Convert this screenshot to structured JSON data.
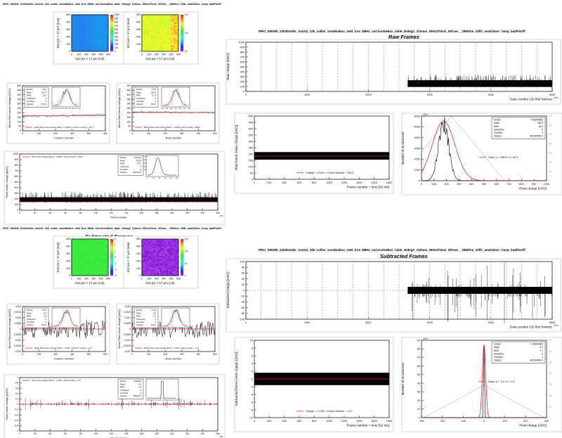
{
  "headers": {
    "left_raw": "IPHC_080306_22h00m00s_Am241_22k_collim_1mmRadius_m5d_trv4_5MHz_noConvNoBox_table_20degC_010mm_050x370mm_097aec__1850frm_10ffc_ana015snr_rmnp_badPixOff",
    "right_raw": "IPHC_080306_22h00m00s_Am241_22k_collim_1mmRadius_m5d_trv4_5MHz_noConvNoBox_table_20degC_010mm_050x370mm_097aec__1850frm_10ffc_ana015snr_rmnp_badPixOff",
    "left_sub": "IPHC_080306_22h00m00s_Am241_22k_collim_1mmRadius_m5d_trv4_5MHz_noConvNoBox_table_20degC_010mm_050x370mm_097aec__1850frm_10ffc_ana015snr_rmnp_badPixOff",
    "right_sub": "IPHC_080306_22h00m00s_Am241_22k_collim_1mmRadius_m5d_trv4_5MHz_noConvNoBox_table_20degC_010mm_050x370mm_097aec__1850frm_10ffc_ana015snr_rmnp_badPixOff",
    "raw_title": "Raw Frames",
    "sub_title": "Subtracted Frames"
  },
  "colors": {
    "data": "#000000",
    "fit": "#e8262a",
    "dash": "#777777",
    "grid": "#aaaaaa",
    "axis": "#000000"
  },
  "chart_data": [
    {
      "id": "raw_map_mean",
      "type": "heatmap",
      "title": "",
      "xlabel": "512 pix × 17 µm  (col)",
      "ylabel": "512 pix × 17 µm  (row)",
      "x_ticks": [
        "0",
        "100",
        "200",
        "300",
        "400",
        "500"
      ],
      "y_ticks": [
        "0",
        "100",
        "200",
        "300",
        "400",
        "500"
      ],
      "z_ticks": [
        "0",
        "100",
        "200",
        "300",
        "400",
        "500",
        "600",
        "700",
        "800",
        "900",
        "1000"
      ],
      "palette": "rainbow-blue"
    },
    {
      "id": "raw_map_rms",
      "type": "heatmap",
      "title": "",
      "xlabel": "512 pix × 17 µm  (col)",
      "ylabel": "512 pix × 17 µm  (row)",
      "x_ticks": [
        "0",
        "100",
        "200",
        "300",
        "400",
        "500"
      ],
      "y_ticks": [
        "0",
        "100",
        "200",
        "300",
        "400",
        "500"
      ],
      "z_ticks": [
        "10",
        "10²",
        "10³"
      ],
      "palette": "rainbow-yellow"
    },
    {
      "id": "raw_col",
      "type": "line",
      "xlabel": "Column number",
      "ylabel": "Mean Pixel mean charge  [ADC]",
      "x_ticks": [
        "0",
        "100",
        "200",
        "300",
        "400",
        "500"
      ],
      "y_ticks": [
        "0",
        "50",
        "100",
        "150",
        "200",
        "250",
        "300",
        "350",
        "400",
        "450",
        "500"
      ],
      "legend": "Mean Pixel mean charge [ADC] = +0.063 × Column number + 167.7",
      "stats": [
        [
          "Entries",
          "= 512"
        ],
        [
          "Mean",
          "163.4"
        ],
        [
          "RMS",
          "15.5"
        ],
        [
          "Underflow",
          "0"
        ],
        [
          "Overflow",
          "0"
        ],
        [
          "Integral",
          "512.0"
        ]
      ],
      "inset_x_ticks": [
        "100",
        "120",
        "140",
        "160",
        "180",
        "200",
        "220",
        "240",
        "260"
      ],
      "values": [
        158,
        161,
        163,
        160,
        165,
        162,
        164,
        166,
        161,
        163,
        165,
        168,
        164,
        166,
        170,
        167,
        165,
        168,
        171,
        169,
        172,
        170,
        173,
        175,
        171,
        174,
        176,
        178,
        175,
        177
      ]
    },
    {
      "id": "raw_row",
      "type": "line",
      "xlabel": "Row number",
      "ylabel": "Mean Pixel mean charge  [ADC]",
      "x_ticks": [
        "0",
        "100",
        "200",
        "300",
        "400",
        "500"
      ],
      "y_ticks": [
        "0",
        "50",
        "100",
        "150",
        "200",
        "250",
        "300",
        "350",
        "400",
        "450",
        "500"
      ],
      "legend": "Mean Pixel mean charge [ADC] = -0.009 × Row number + 208.8",
      "stats": [
        [
          "Entries",
          "= 512"
        ],
        [
          "Mean",
          "183.9"
        ],
        [
          "RMS",
          "21.4"
        ],
        [
          "Underflow",
          "0"
        ],
        [
          "Overflow",
          "0"
        ],
        [
          "Integral",
          "512.0"
        ]
      ],
      "inset_x_ticks": [
        "140",
        "160",
        "180",
        "200",
        "220",
        "240",
        "260"
      ],
      "values": [
        206,
        210,
        208,
        212,
        207,
        205,
        209,
        211,
        207,
        204,
        208,
        206,
        210,
        205,
        203,
        207,
        206,
        202,
        205,
        208,
        204,
        203,
        206,
        201,
        205,
        203,
        207,
        202,
        204,
        200
      ]
    },
    {
      "id": "raw_pixel",
      "type": "line",
      "xlabel": "Pixel number",
      "ylabel": "Pixel mean charge  [ADC]",
      "x_ticks": [
        "0",
        "20",
        "40",
        "60",
        "80",
        "100",
        "120",
        "140",
        "160",
        "180",
        "200",
        "220",
        "240",
        "260"
      ],
      "x_unit": "×10³",
      "y_ticks": [
        "0",
        "100",
        "200",
        "300",
        "400",
        "500",
        "600",
        "700",
        "800",
        "900",
        "1000"
      ],
      "legend": "Pixel mean charge [ADC] = +0.000 × Pixel number + 149.4",
      "stats": [
        [
          "Entries",
          "= 262144"
        ],
        [
          "Mean",
          "183.9"
        ],
        [
          "RMS",
          "45.1"
        ],
        [
          "Underflow",
          "0"
        ],
        [
          "Overflow",
          "0"
        ],
        [
          "Integral",
          "262144.0"
        ]
      ],
      "inset_x_ticks": [
        "0",
        "100",
        "200",
        "300",
        "400",
        "500"
      ],
      "inset_y_ticks": [
        "5000",
        "10000",
        "15000",
        "20000",
        "25000"
      ],
      "mean": 183.9,
      "rms": 45.1
    },
    {
      "id": "raw_frames",
      "type": "line",
      "xlabel": "Data number  (20 first frames)",
      "ylabel": "Raw charge  [ADC]",
      "x_ticks": [
        "0",
        "1000",
        "2000",
        "3000",
        "4000",
        "5000"
      ],
      "x_unit": "×10³",
      "y_ticks": [
        "0",
        "100",
        "200",
        "300",
        "400",
        "500",
        "600",
        "700",
        "800",
        "900",
        "1000"
      ],
      "xlim": [
        0,
        5300
      ],
      "ylim": [
        0,
        1100
      ],
      "data_start": 2800,
      "data_level": [
        100,
        350
      ]
    },
    {
      "id": "raw_frame_mean",
      "type": "line",
      "xlabel": "Frame number = time  [52 ms]",
      "ylabel": "Raw frame mean charge  [ADC]",
      "x_ticks": [
        "0",
        "200",
        "400",
        "600",
        "800",
        "1000",
        "1200",
        "1400",
        "1600",
        "1800"
      ],
      "y_ticks": [
        "0",
        "50",
        "100",
        "150",
        "200",
        "250",
        "300",
        "350",
        "400",
        "450",
        "500"
      ],
      "legend": "Charge = +0.001 × Frame Number + 183.4",
      "xlim": [
        0,
        1850
      ],
      "ylim": [
        0,
        500
      ],
      "band": [
        155,
        215
      ],
      "fit": 183.4
    },
    {
      "id": "raw_pixel_charge",
      "type": "histogram",
      "xlabel": "Pixel charge  [ADC]",
      "ylabel": "Number of occurences",
      "y_unit": "×10³",
      "x_ticks": [
        "0",
        "100",
        "200",
        "300",
        "400",
        "500",
        "600",
        "700",
        "800",
        "900",
        "1000"
      ],
      "y_ticks": [
        "0",
        "1000",
        "2000",
        "3000",
        "4000",
        "5000",
        "6000"
      ],
      "log_ticks": [
        "1",
        "10",
        "10²",
        "10³",
        "10⁴",
        "10⁵",
        "10⁶",
        "10⁷"
      ],
      "legend": "Gaus: µ = 185.6 / σ = 42.9",
      "stats": [
        [
          "Entries",
          "= 482344960"
        ],
        [
          "Mean",
          "183.9"
        ],
        [
          "RMS",
          "45.2"
        ],
        [
          "Underflow",
          "0"
        ],
        [
          "Overflow",
          "0"
        ],
        [
          "Integral",
          "482344960.0"
        ]
      ],
      "mu": 185.6,
      "sigma": 42.9,
      "peak": 6000
    },
    {
      "id": "sub_map_mean",
      "type": "heatmap",
      "xlabel": "512 pix × 17 µm  (col)",
      "ylabel": "512 pix × 17 µm  (row)",
      "x_ticks": [
        "0",
        "100",
        "200",
        "300",
        "400",
        "500"
      ],
      "y_ticks": [
        "0",
        "100",
        "200",
        "300",
        "400",
        "500"
      ],
      "z_ticks": [
        "-3",
        "-2",
        "-1",
        "0",
        "1",
        "2",
        "3"
      ],
      "palette": "green"
    },
    {
      "id": "sub_map_rms",
      "type": "heatmap",
      "xlabel": "512 pix × 17 µm  (col)",
      "ylabel": "512 pix × 17 µm  (row)",
      "x_ticks": [
        "0",
        "100",
        "200",
        "300",
        "400",
        "500"
      ],
      "y_ticks": [
        "0",
        "100",
        "200",
        "300",
        "400",
        "500"
      ],
      "z_ticks": [
        "1",
        "10",
        "10²",
        "10³"
      ],
      "palette": "purple"
    },
    {
      "id": "sub_col",
      "type": "line",
      "xlabel": "Column number",
      "ylabel": "Mean Pixel mean charge  [ADC]",
      "x_ticks": [
        "0",
        "100",
        "200",
        "300",
        "400",
        "500"
      ],
      "y_ticks": [
        "-0.002",
        "-0.0015",
        "-0.001",
        "-0.0005",
        "0",
        "0.0005",
        "0.001",
        "0.0015",
        "0.002"
      ],
      "legend": "Mean Pixel mean charge [ADC] = -0.000 × Column number + -0.0",
      "stats": [
        [
          "Entries",
          "= 512"
        ],
        [
          "Mean",
          "-0.0"
        ],
        [
          "RMS",
          "0.0"
        ],
        [
          "Underflow",
          "0"
        ],
        [
          "Overflow",
          "0"
        ],
        [
          "Integral",
          "512.0"
        ]
      ]
    },
    {
      "id": "sub_row",
      "type": "line",
      "xlabel": "Row number",
      "ylabel": "Mean Pixel mean charge  [ADC]",
      "x_ticks": [
        "0",
        "100",
        "200",
        "300",
        "400",
        "500"
      ],
      "y_ticks": [
        "-0.002",
        "-0.0015",
        "-0.001",
        "-0.0005",
        "0",
        "0.0005",
        "0.001",
        "0.0015",
        "0.002"
      ],
      "legend": "Mean Pixel mean charge [ADC] = -0.000 × Row number + -0.0",
      "stats": [
        [
          "Entries",
          "= 512"
        ],
        [
          "Mean",
          "-0.0"
        ],
        [
          "RMS",
          "0.0"
        ],
        [
          "Underflow",
          "0"
        ],
        [
          "Overflow",
          "0"
        ],
        [
          "Integral",
          "512.0"
        ]
      ]
    },
    {
      "id": "sub_pixel",
      "type": "line",
      "xlabel": "Pixel number",
      "ylabel": "Pixel mean charge  [ADC]",
      "x_ticks": [
        "0",
        "20",
        "40",
        "60",
        "80",
        "100",
        "120",
        "140",
        "160",
        "180",
        "200",
        "220",
        "240",
        "260"
      ],
      "x_unit": "×10³",
      "y_ticks": [
        "-1",
        "-0.8",
        "-0.6",
        "-0.4",
        "-0.2",
        "0",
        "0.2",
        "0.4",
        "0.6",
        "0.8",
        "1"
      ],
      "legend": "Pixel mean charge [ADC] = -0.000 × Pixel number + -0.0",
      "stats": [
        [
          "Entries",
          "= 262144"
        ],
        [
          "Mean",
          "-0.0"
        ],
        [
          "RMS",
          "0.0"
        ],
        [
          "Underflow",
          "0"
        ],
        [
          "Overflow",
          "0"
        ],
        [
          "Integral",
          "262144.0"
        ]
      ]
    },
    {
      "id": "sub_frames",
      "type": "line",
      "xlabel": "Data number  (20 first frames)",
      "ylabel": "Subtracted charge  [ADC]",
      "x_ticks": [
        "0",
        "1000",
        "2000",
        "3000",
        "4000",
        "5000"
      ],
      "x_unit": "×10³",
      "y_ticks": [
        "-100",
        "-80",
        "-60",
        "-40",
        "-20",
        "0",
        "20",
        "40",
        "60",
        "80",
        "100"
      ],
      "xlim": [
        0,
        5300
      ],
      "ylim": [
        -100,
        100
      ],
      "data_start": 2800
    },
    {
      "id": "sub_frame_mean",
      "type": "line",
      "xlabel": "Frame number = time  [52 ms]",
      "ylabel": "Subtracted frame mean charge  [ADC]",
      "x_ticks": [
        "0",
        "200",
        "400",
        "600",
        "800",
        "1000",
        "1200",
        "1400",
        "1600",
        "1800"
      ],
      "y_ticks": [
        "-10",
        "-8",
        "-6",
        "-4",
        "-2",
        "0",
        "2",
        "4",
        "6",
        "8",
        "10"
      ],
      "legend": "Charge = +0.000 × Frame Number + -0.0",
      "xlim": [
        0,
        1850
      ],
      "ylim": [
        -10,
        10
      ],
      "fit": 0.0
    },
    {
      "id": "sub_pixel_charge",
      "type": "histogram",
      "xlabel": "Pixel charge  [ADC]",
      "ylabel": "Number of occurences",
      "y_unit": "×10³",
      "x_ticks": [
        "-300",
        "-200",
        "-100",
        "0",
        "100",
        "200",
        "300"
      ],
      "y_ticks": [
        "0",
        "10",
        "20",
        "30",
        "40",
        "50",
        "60",
        "70",
        "80",
        "90"
      ],
      "log_ticks": [
        "1",
        "10",
        "10²",
        "10³",
        "10⁴",
        "10⁵",
        "10⁶",
        "10⁷"
      ],
      "legend": "Gaus: µ = -0.0 / σ = 2.3",
      "stats": [
        [
          "Entries",
          "= 482344960"
        ],
        [
          "Mean",
          "-0.0"
        ],
        [
          "RMS",
          "2.7"
        ],
        [
          "Underflow",
          "0"
        ],
        [
          "Overflow",
          "0"
        ],
        [
          "Integral",
          "482344960.0"
        ]
      ],
      "mu": 0.0,
      "sigma": 2.3,
      "peak": 90
    }
  ]
}
